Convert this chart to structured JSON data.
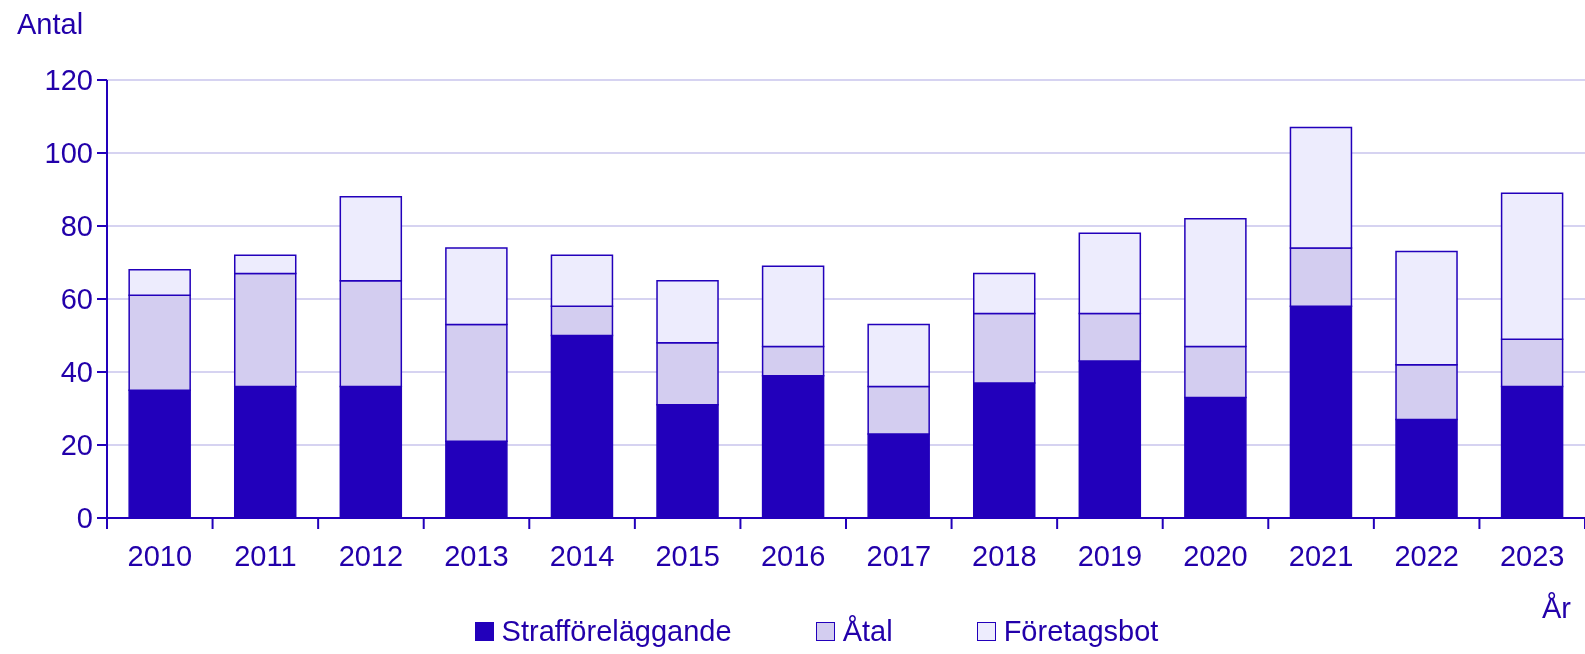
{
  "chart_data": {
    "type": "bar",
    "stacked": true,
    "ylabel": "Antal",
    "xlabel": "År",
    "categories": [
      "2010",
      "2011",
      "2012",
      "2013",
      "2014",
      "2015",
      "2016",
      "2017",
      "2018",
      "2019",
      "2020",
      "2021",
      "2022",
      "2023"
    ],
    "series": [
      {
        "name": "Strafföreläggande",
        "color": "#2200bb",
        "values": [
          35,
          36,
          36,
          21,
          50,
          31,
          39,
          23,
          37,
          43,
          33,
          58,
          27,
          36
        ]
      },
      {
        "name": "Åtal",
        "color": "#d3cdf0",
        "values": [
          26,
          31,
          29,
          32,
          8,
          17,
          8,
          13,
          19,
          13,
          14,
          16,
          15,
          13
        ]
      },
      {
        "name": "Företagsbot",
        "color": "#edecfd",
        "values": [
          7,
          5,
          23,
          21,
          14,
          17,
          22,
          17,
          11,
          22,
          35,
          33,
          31,
          40
        ]
      }
    ],
    "ylim": [
      0,
      120
    ],
    "yticks": [
      0,
      20,
      40,
      60,
      80,
      100,
      120
    ],
    "grid": "y",
    "legend": "bottom"
  }
}
